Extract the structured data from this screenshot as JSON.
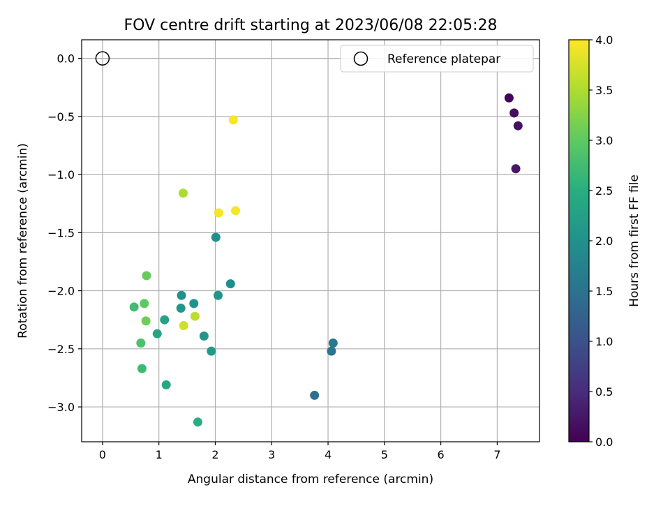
{
  "chart_data": {
    "type": "scatter",
    "title": "FOV centre drift starting at 2023/06/08 22:05:28",
    "xlabel": "Angular distance from reference (arcmin)",
    "ylabel": "Rotation from reference (arcmin)",
    "xlim": [
      -0.37,
      7.75
    ],
    "ylim": [
      -3.3,
      0.16
    ],
    "xticks": [
      0,
      1,
      2,
      3,
      4,
      5,
      6,
      7
    ],
    "xtick_labels": [
      "0",
      "1",
      "2",
      "3",
      "4",
      "5",
      "6",
      "7"
    ],
    "yticks": [
      0.0,
      -0.5,
      -1.0,
      -1.5,
      -2.0,
      -2.5,
      -3.0
    ],
    "ytick_labels": [
      "0.0",
      "−0.5",
      "−1.0",
      "−1.5",
      "−2.0",
      "−2.5",
      "−3.0"
    ],
    "grid": true,
    "legend": {
      "position": "top-right",
      "entries": [
        {
          "label": "Reference platepar",
          "marker": "open-circle",
          "color": "#000000"
        }
      ]
    },
    "reference_point": {
      "x": 0.0,
      "y": 0.0
    },
    "colorbar": {
      "label": "Hours from first FF file",
      "colormap": "viridis",
      "range": [
        0.0,
        4.0
      ],
      "ticks": [
        0.0,
        0.5,
        1.0,
        1.5,
        2.0,
        2.5,
        3.0,
        3.5,
        4.0
      ],
      "tick_labels": [
        "0.0",
        "0.5",
        "1.0",
        "1.5",
        "2.0",
        "2.5",
        "3.0",
        "3.5",
        "4.0"
      ]
    },
    "points": [
      {
        "x": 7.21,
        "y": -0.34,
        "hours": 0.05
      },
      {
        "x": 7.3,
        "y": -0.47,
        "hours": 0.12
      },
      {
        "x": 7.37,
        "y": -0.58,
        "hours": 0.18
      },
      {
        "x": 7.33,
        "y": -0.95,
        "hours": 0.25
      },
      {
        "x": 3.76,
        "y": -2.9,
        "hours": 1.45
      },
      {
        "x": 4.06,
        "y": -2.52,
        "hours": 1.55
      },
      {
        "x": 4.09,
        "y": -2.45,
        "hours": 1.6
      },
      {
        "x": 2.27,
        "y": -1.94,
        "hours": 1.95
      },
      {
        "x": 2.01,
        "y": -1.54,
        "hours": 1.98
      },
      {
        "x": 1.4,
        "y": -2.04,
        "hours": 2.0
      },
      {
        "x": 1.62,
        "y": -2.11,
        "hours": 2.02
      },
      {
        "x": 2.05,
        "y": -2.04,
        "hours": 2.05
      },
      {
        "x": 1.39,
        "y": -2.15,
        "hours": 2.08
      },
      {
        "x": 1.8,
        "y": -2.39,
        "hours": 2.1
      },
      {
        "x": 1.93,
        "y": -2.52,
        "hours": 2.15
      },
      {
        "x": 1.1,
        "y": -2.25,
        "hours": 2.3
      },
      {
        "x": 0.97,
        "y": -2.37,
        "hours": 2.35
      },
      {
        "x": 1.13,
        "y": -2.81,
        "hours": 2.4
      },
      {
        "x": 1.69,
        "y": -3.13,
        "hours": 2.5
      },
      {
        "x": 0.7,
        "y": -2.67,
        "hours": 2.7
      },
      {
        "x": 0.56,
        "y": -2.14,
        "hours": 2.75
      },
      {
        "x": 0.68,
        "y": -2.45,
        "hours": 2.85
      },
      {
        "x": 0.74,
        "y": -2.11,
        "hours": 3.0
      },
      {
        "x": 0.78,
        "y": -1.87,
        "hours": 3.05
      },
      {
        "x": 0.77,
        "y": -2.26,
        "hours": 3.1
      },
      {
        "x": 1.43,
        "y": -1.16,
        "hours": 3.5
      },
      {
        "x": 1.64,
        "y": -2.22,
        "hours": 3.6
      },
      {
        "x": 1.44,
        "y": -2.3,
        "hours": 3.7
      },
      {
        "x": 2.06,
        "y": -1.33,
        "hours": 3.95
      },
      {
        "x": 2.36,
        "y": -1.31,
        "hours": 3.95
      },
      {
        "x": 2.32,
        "y": -0.53,
        "hours": 3.97
      }
    ]
  }
}
